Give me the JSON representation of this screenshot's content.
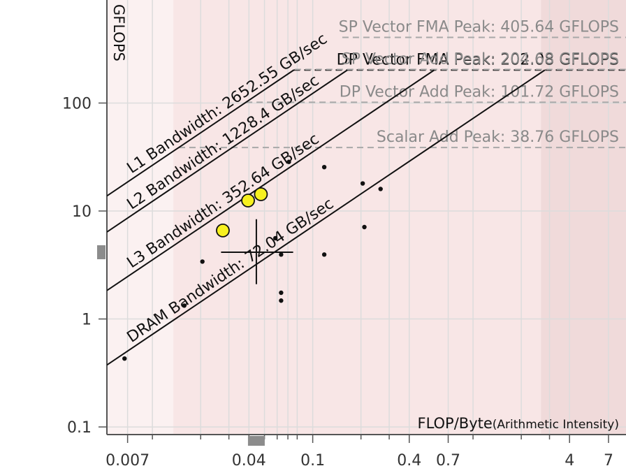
{
  "chart_data": {
    "type": "scatter",
    "title": "",
    "xlabel": "FLOP/Byte",
    "xlabel_sub": "(Arithmetic Intensity)",
    "ylabel": "GFLOPS",
    "x_scale": "log",
    "y_scale": "log",
    "xlim": [
      0.0052,
      9.0
    ],
    "ylim": [
      0.085,
      900
    ],
    "grid": true,
    "x_ticks": [
      {
        "value": 0.007,
        "label": "0.007"
      },
      {
        "value": 0.04,
        "label": "0.04"
      },
      {
        "value": 0.1,
        "label": "0.1"
      },
      {
        "value": 0.4,
        "label": "0.4"
      },
      {
        "value": 0.7,
        "label": "0.7"
      },
      {
        "value": 4,
        "label": "4"
      },
      {
        "value": 7,
        "label": "7"
      }
    ],
    "x_minor_ticks": [
      0.01,
      0.02,
      0.03,
      0.05,
      0.06,
      0.07,
      0.08,
      0.2,
      0.3,
      1,
      2,
      3
    ],
    "y_ticks": [
      {
        "value": 0.1,
        "label": "0.1"
      },
      {
        "value": 1,
        "label": "1"
      },
      {
        "value": 10,
        "label": "10"
      },
      {
        "value": 100,
        "label": "100"
      }
    ],
    "compute_roofs": [
      {
        "label": "SP Vector FMA Peak: 405.64 GFLOPS",
        "gflops": 405.64,
        "style": "dashed",
        "color": "#a8a8a8",
        "emphasis": false
      },
      {
        "label": "DP Vector FMA Peak: 202.08 GFLOPS",
        "gflops": 202.08,
        "style": "dashed",
        "color": "#111111",
        "emphasis": true
      },
      {
        "label": "SP Vector Add Peak: 204.68 GFLOPS",
        "gflops": 204.68,
        "style": "dashed",
        "color": "#a8a8a8",
        "emphasis": false
      },
      {
        "label": "DP Vector Add Peak: 101.72 GFLOPS",
        "gflops": 101.72,
        "style": "dashed",
        "color": "#a8a8a8",
        "emphasis": false
      },
      {
        "label": "Scalar Add Peak: 38.76 GFLOPS",
        "gflops": 38.76,
        "style": "dashed",
        "color": "#a8a8a8",
        "emphasis": false
      }
    ],
    "bandwidth_roofs": [
      {
        "label": "L1 Bandwidth: 2652.55 GB/sec",
        "gbps": 2652.55
      },
      {
        "label": "L2 Bandwidth: 1228.4 GB/sec",
        "gbps": 1228.4
      },
      {
        "label": "L3 Bandwidth: 352.64 GB/sec",
        "gbps": 352.64
      },
      {
        "label": "DRAM Bandwidth: 72.04 GB/sec",
        "gbps": 72.04
      }
    ],
    "highlighted_points": [
      {
        "x": 0.0275,
        "y": 6.6
      },
      {
        "x": 0.0395,
        "y": 12.5
      },
      {
        "x": 0.0475,
        "y": 14.3
      }
    ],
    "points": [
      {
        "x": 0.0067,
        "y": 0.43
      },
      {
        "x": 0.0158,
        "y": 1.33
      },
      {
        "x": 0.0205,
        "y": 3.4
      },
      {
        "x": 0.0585,
        "y": 5.6
      },
      {
        "x": 0.0635,
        "y": 3.95
      },
      {
        "x": 0.0635,
        "y": 1.75
      },
      {
        "x": 0.0635,
        "y": 1.48
      },
      {
        "x": 0.071,
        "y": 28.5
      },
      {
        "x": 0.118,
        "y": 25.5
      },
      {
        "x": 0.118,
        "y": 3.95
      },
      {
        "x": 0.205,
        "y": 18.0
      },
      {
        "x": 0.21,
        "y": 7.1
      },
      {
        "x": 0.265,
        "y": 16.0
      }
    ],
    "crosshair": {
      "x": 0.0445,
      "y": 4.15,
      "x_range": [
        0.0268,
        0.0755
      ],
      "y_range": [
        2.1,
        8.4
      ]
    },
    "axis_markers": {
      "x": 0.0445,
      "y": 4.15
    },
    "background_bands": [
      {
        "x_from": 0.0052,
        "x_to": 0.0135,
        "color": "#fbf1f1"
      },
      {
        "x_from": 0.0135,
        "x_to": 2.65,
        "color": "#f8e6e6"
      },
      {
        "x_from": 2.65,
        "x_to": 9.0,
        "color": "#f0dada"
      }
    ],
    "colors": {
      "highlight_fill": "#f7f01f",
      "point": "#111111",
      "grid": "#dcdcdc",
      "axis": "#555555",
      "marker": "#8c8c8c"
    }
  }
}
